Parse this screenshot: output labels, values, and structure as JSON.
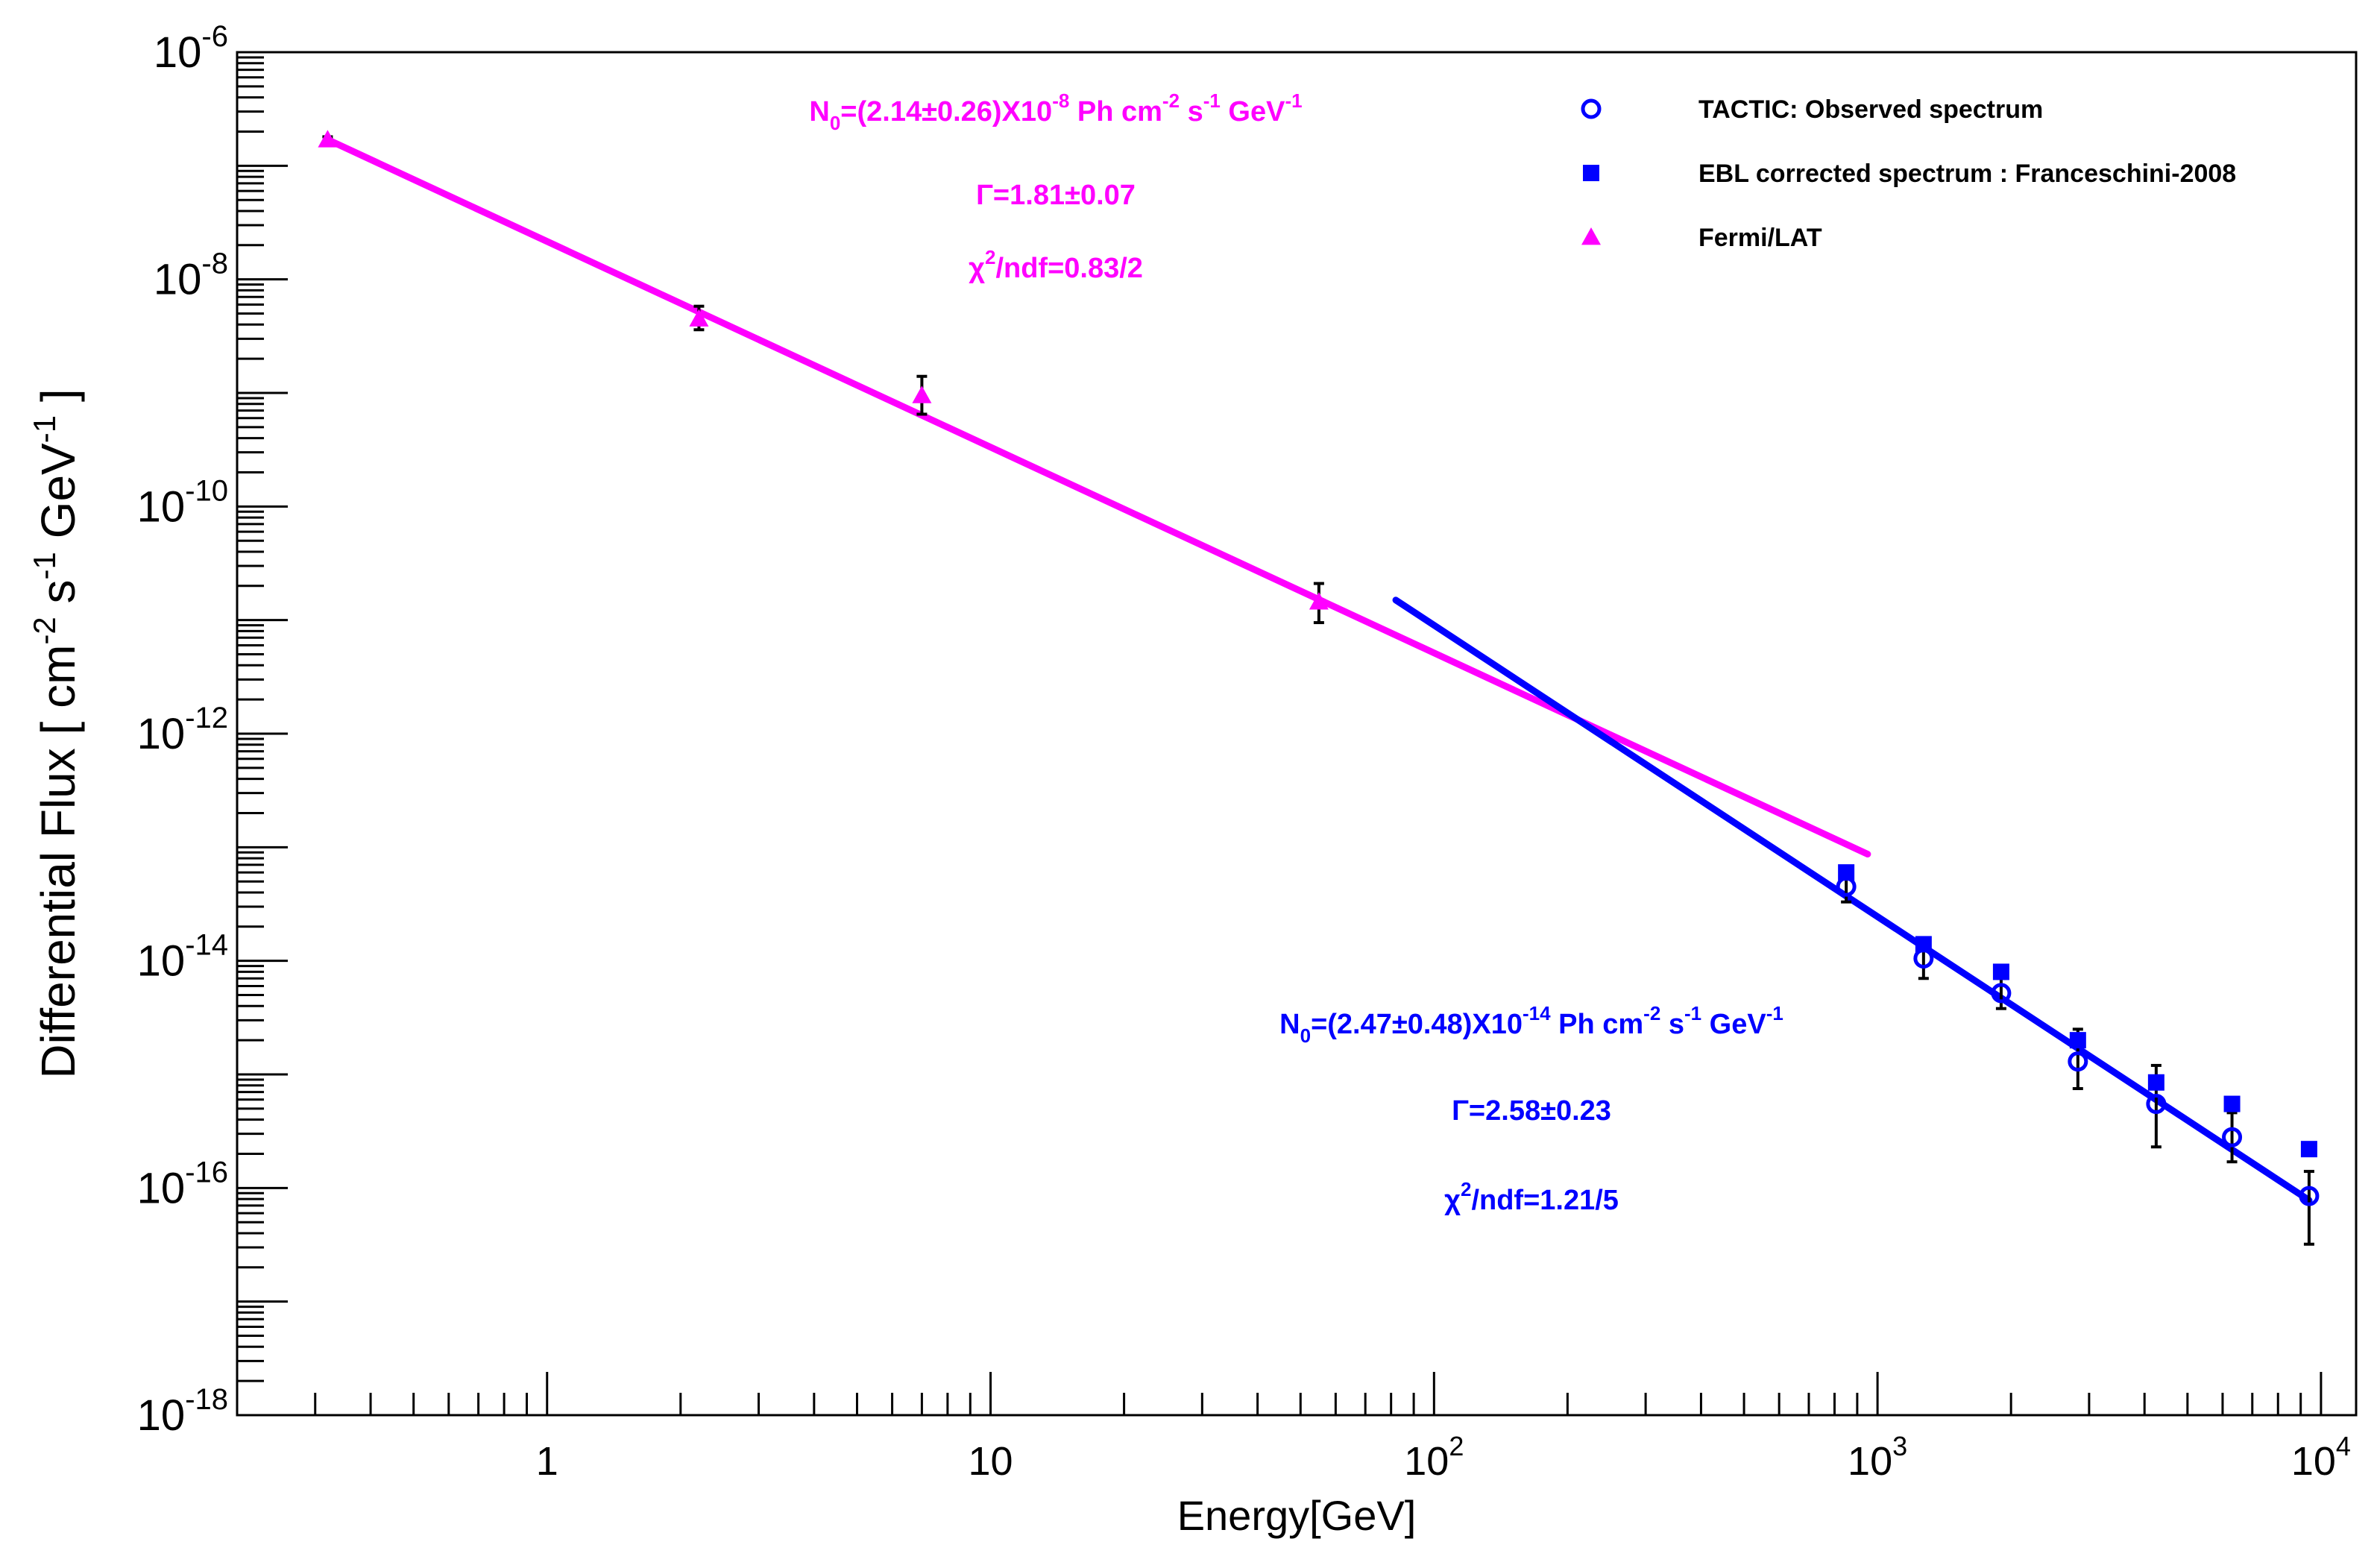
{
  "chart_data": {
    "type": "scatter",
    "xlabel": "Energy[GeV]",
    "ylabel_parts": [
      "Differential Flux [ cm",
      "-2",
      " s",
      "-1",
      " GeV",
      "-1",
      " ]"
    ],
    "xscale": "log",
    "yscale": "log",
    "xlim": [
      0.2,
      12000
    ],
    "ylim": [
      1e-18,
      1e-06
    ],
    "x_ticks": [
      {
        "value": 1,
        "base": "1",
        "exp": ""
      },
      {
        "value": 10,
        "base": "10",
        "exp": ""
      },
      {
        "value": 100,
        "base": "10",
        "exp": "2"
      },
      {
        "value": 1000,
        "base": "10",
        "exp": "3"
      },
      {
        "value": 10000,
        "base": "10",
        "exp": "4"
      }
    ],
    "y_ticks": [
      {
        "value": 1e-06,
        "base": "10",
        "exp": "-6"
      },
      {
        "value": 1e-08,
        "base": "10",
        "exp": "-8"
      },
      {
        "value": 1e-10,
        "base": "10",
        "exp": "-10"
      },
      {
        "value": 1e-12,
        "base": "10",
        "exp": "-12"
      },
      {
        "value": 1e-14,
        "base": "10",
        "exp": "-14"
      },
      {
        "value": 1e-16,
        "base": "10",
        "exp": "-16"
      },
      {
        "value": 1e-18,
        "base": "10",
        "exp": "-18"
      }
    ],
    "grid": false,
    "legend_position": "top-right",
    "legend": [
      {
        "label": "TACTIC: Observed spectrum",
        "marker": "open-circle",
        "color": "#0000ff"
      },
      {
        "label": "EBL corrected spectrum : Franceschini-2008",
        "marker": "filled-square",
        "color": "#0000ff"
      },
      {
        "label": "Fermi/LAT",
        "marker": "filled-triangle",
        "color": "#ff00ff"
      }
    ],
    "series": [
      {
        "name": "Fermi/LAT",
        "marker": "filled-triangle",
        "color": "#ff00ff",
        "points": [
          {
            "x": 0.32,
            "y": 1.7e-07,
            "ylo": 1.6e-07,
            "yhi": 1.8e-07
          },
          {
            "x": 2.2,
            "y": 4.5e-09,
            "ylo": 3.6e-09,
            "yhi": 5.8e-09
          },
          {
            "x": 7.0,
            "y": 9.5e-10,
            "ylo": 6.5e-10,
            "yhi": 1.4e-09
          },
          {
            "x": 55,
            "y": 1.45e-11,
            "ylo": 9.5e-12,
            "yhi": 2.1e-11
          }
        ]
      },
      {
        "name": "TACTIC: Observed spectrum",
        "marker": "open-circle",
        "color": "#0000ff",
        "points": [
          {
            "x": 850,
            "y": 4.5e-14,
            "ylo": 3.3e-14,
            "yhi": 6.7e-14
          },
          {
            "x": 1270,
            "y": 1.05e-14,
            "ylo": 7e-15,
            "yhi": 1.6e-14
          },
          {
            "x": 1900,
            "y": 5.2e-15,
            "ylo": 3.8e-15,
            "yhi": 7e-15
          },
          {
            "x": 2830,
            "y": 1.3e-15,
            "ylo": 7.5e-16,
            "yhi": 2.5e-15
          },
          {
            "x": 4250,
            "y": 5.5e-16,
            "ylo": 2.3e-16,
            "yhi": 1.2e-15
          },
          {
            "x": 6300,
            "y": 2.8e-16,
            "ylo": 1.7e-16,
            "yhi": 4.6e-16
          },
          {
            "x": 9400,
            "y": 8.5e-17,
            "ylo": 3.2e-17,
            "yhi": 1.4e-16
          }
        ]
      },
      {
        "name": "EBL corrected spectrum : Franceschini-2008",
        "marker": "filled-square",
        "color": "#0000ff",
        "points": [
          {
            "x": 850,
            "y": 6e-14
          },
          {
            "x": 1270,
            "y": 1.4e-14
          },
          {
            "x": 1900,
            "y": 8e-15
          },
          {
            "x": 2830,
            "y": 2e-15
          },
          {
            "x": 4250,
            "y": 8.5e-16
          },
          {
            "x": 6300,
            "y": 5.5e-16
          },
          {
            "x": 9400,
            "y": 2.2e-16
          }
        ]
      }
    ],
    "fits": [
      {
        "name": "Fermi/LAT fit",
        "color": "#ff00ff",
        "x_range": [
          0.32,
          950
        ],
        "y_range": [
          1.7e-07,
          8.7e-14
        ],
        "annotation": {
          "n0_prefix": "N",
          "n0_sub": "0",
          "n0_value": "=(2.14±0.26)X10",
          "n0_exp": "-8",
          "n0_unit": " Ph cm",
          "n0_unit_exp1": "-2",
          "n0_unit2": " s",
          "n0_unit_exp2": "-1",
          "n0_unit3": " GeV",
          "n0_unit_exp3": "-1",
          "gamma": "Γ=1.81±0.07",
          "chi_prefix": "χ",
          "chi_sup": "2",
          "chi_rest": "/ndf=0.83/2"
        }
      },
      {
        "name": "TACTIC fit",
        "color": "#0000ff",
        "x_range": [
          82,
          9400
        ],
        "y_range": [
          1.5e-11,
          7.8e-17
        ],
        "annotation": {
          "n0_prefix": "N",
          "n0_sub": "0",
          "n0_value": "=(2.47±0.48)X10",
          "n0_exp": "-14",
          "n0_unit": " Ph cm",
          "n0_unit_exp1": "-2",
          "n0_unit2": " s",
          "n0_unit_exp2": "-1",
          "n0_unit3": " GeV",
          "n0_unit_exp3": "-1",
          "gamma": "Γ=2.58±0.23",
          "chi_prefix": "χ",
          "chi_sup": "2",
          "chi_rest": "/ndf=1.21/5"
        }
      }
    ]
  }
}
